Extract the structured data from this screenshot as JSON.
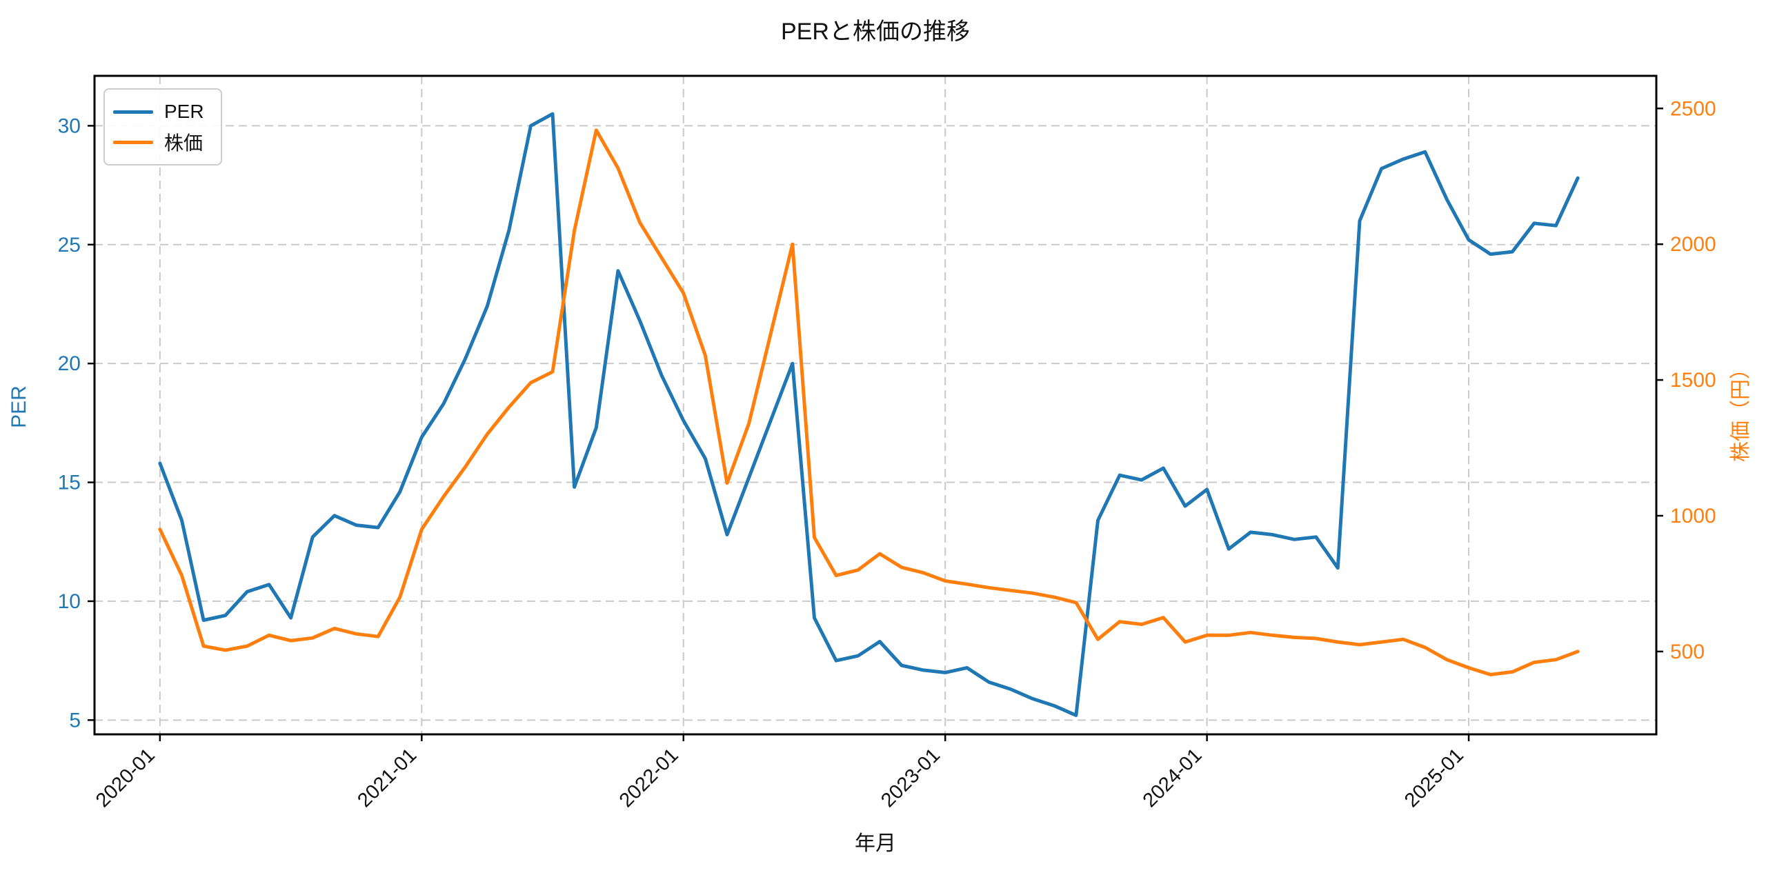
{
  "title": "PERと株価の推移",
  "axes": {
    "x": {
      "label": "年月"
    },
    "left": {
      "label": "PER",
      "color": "#1f77b4"
    },
    "right": {
      "label": "株価（円）",
      "color": "#ff7f0e"
    }
  },
  "legend": {
    "items": [
      {
        "label": "PER",
        "color": "#1f77b4"
      },
      {
        "label": "株価",
        "color": "#ff7f0e"
      }
    ]
  },
  "colors": {
    "per_line": "#1f77b4",
    "price_line": "#ff7f0e",
    "grid": "#c9c9c9",
    "spine": "#000000",
    "tick_text_x": "#111111"
  },
  "chart_data": {
    "type": "line",
    "x": [
      "2020-01",
      "2020-02",
      "2020-03",
      "2020-04",
      "2020-05",
      "2020-06",
      "2020-07",
      "2020-08",
      "2020-09",
      "2020-10",
      "2020-11",
      "2020-12",
      "2021-01",
      "2021-02",
      "2021-03",
      "2021-04",
      "2021-05",
      "2021-06",
      "2021-07",
      "2021-08",
      "2021-09",
      "2021-10",
      "2021-11",
      "2021-12",
      "2022-01",
      "2022-02",
      "2022-03",
      "2022-04",
      "2022-05",
      "2022-06",
      "2022-07",
      "2022-08",
      "2022-09",
      "2022-10",
      "2022-11",
      "2022-12",
      "2023-01",
      "2023-02",
      "2023-03",
      "2023-04",
      "2023-05",
      "2023-06",
      "2023-07",
      "2023-08",
      "2023-09",
      "2023-10",
      "2023-11",
      "2023-12",
      "2024-01",
      "2024-02",
      "2024-03",
      "2024-04",
      "2024-05",
      "2024-06",
      "2024-07",
      "2024-08",
      "2024-09",
      "2024-10",
      "2024-11",
      "2024-12",
      "2025-01",
      "2025-02",
      "2025-03",
      "2025-04",
      "2025-05",
      "2025-06"
    ],
    "series": [
      {
        "name": "PER",
        "axis": "left",
        "color": "#1f77b4",
        "values": [
          15.8,
          13.4,
          9.2,
          9.4,
          10.4,
          10.7,
          9.3,
          12.7,
          13.6,
          13.2,
          13.1,
          14.6,
          16.9,
          18.3,
          20.2,
          22.4,
          25.6,
          30.0,
          30.5,
          14.8,
          17.3,
          23.9,
          21.8,
          19.5,
          17.6,
          16.0,
          12.8,
          15.2,
          17.6,
          20.0,
          9.3,
          7.5,
          7.7,
          8.3,
          7.3,
          7.1,
          7.0,
          7.2,
          6.6,
          6.3,
          5.9,
          5.6,
          5.2,
          13.4,
          15.3,
          15.1,
          15.6,
          14.0,
          14.7,
          12.2,
          12.9,
          12.8,
          12.6,
          12.7,
          11.4,
          26.0,
          28.2,
          28.6,
          28.9,
          26.9,
          25.2,
          24.6,
          24.7,
          25.9,
          25.8,
          27.8
        ]
      },
      {
        "name": "株価",
        "axis": "right",
        "color": "#ff7f0e",
        "values": [
          950,
          780,
          520,
          505,
          520,
          560,
          540,
          550,
          585,
          565,
          555,
          700,
          950,
          1070,
          1180,
          1300,
          1400,
          1490,
          1530,
          2050,
          2420,
          2280,
          2080,
          1950,
          1820,
          1590,
          1120,
          1340,
          1670,
          2000,
          920,
          780,
          800,
          860,
          810,
          790,
          760,
          748,
          735,
          725,
          715,
          700,
          680,
          545,
          610,
          600,
          625,
          535,
          560,
          560,
          570,
          560,
          552,
          548,
          535,
          525,
          535,
          545,
          515,
          470,
          440,
          415,
          425,
          460,
          470,
          500
        ]
      }
    ],
    "title": "PERと株価の推移",
    "xlabel": "年月",
    "ylabel_left": "PER",
    "ylabel_right": "株価（円）",
    "x_tick_indices": [
      0,
      12,
      24,
      36,
      48,
      60
    ],
    "x_tick_labels": [
      "2020-01",
      "2021-01",
      "2022-01",
      "2023-01",
      "2024-01",
      "2025-01"
    ],
    "left_ticks": [
      5,
      10,
      15,
      20,
      25,
      30
    ],
    "right_ticks": [
      500,
      1000,
      1500,
      2000,
      2500
    ],
    "left_range": [
      4.4,
      32.1
    ],
    "right_range": [
      195,
      2620
    ],
    "x_index_range": [
      -3.0,
      68.6
    ],
    "grid": true,
    "grid_style": "dashed",
    "legend_position": "upper-left"
  }
}
